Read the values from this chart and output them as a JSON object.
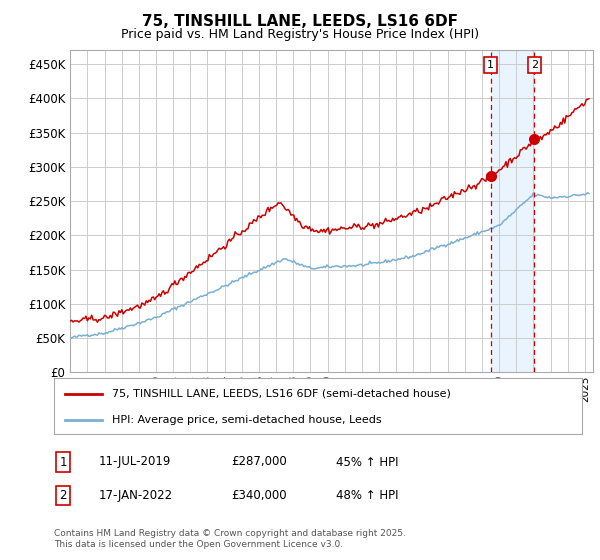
{
  "title": "75, TINSHILL LANE, LEEDS, LS16 6DF",
  "subtitle": "Price paid vs. HM Land Registry's House Price Index (HPI)",
  "ylabel_ticks": [
    "£0",
    "£50K",
    "£100K",
    "£150K",
    "£200K",
    "£250K",
    "£300K",
    "£350K",
    "£400K",
    "£450K"
  ],
  "ytick_vals": [
    0,
    50000,
    100000,
    150000,
    200000,
    250000,
    300000,
    350000,
    400000,
    450000
  ],
  "ylim": [
    0,
    470000
  ],
  "xlim_start": 1995.0,
  "xlim_end": 2025.5,
  "red_color": "#cc0000",
  "blue_color": "#7aafd4",
  "annotation_bg": "#ddeeff",
  "sale1_x": 2019.52,
  "sale1_y": 287000,
  "sale1_label": "1",
  "sale1_date": "11-JUL-2019",
  "sale1_price": "£287,000",
  "sale1_hpi": "45% ↑ HPI",
  "sale2_x": 2022.05,
  "sale2_y": 340000,
  "sale2_label": "2",
  "sale2_date": "17-JAN-2022",
  "sale2_price": "£340,000",
  "sale2_hpi": "48% ↑ HPI",
  "legend_line1": "75, TINSHILL LANE, LEEDS, LS16 6DF (semi-detached house)",
  "legend_line2": "HPI: Average price, semi-detached house, Leeds",
  "footer": "Contains HM Land Registry data © Crown copyright and database right 2025.\nThis data is licensed under the Open Government Licence v3.0.",
  "background_color": "#ffffff",
  "grid_color": "#cccccc"
}
